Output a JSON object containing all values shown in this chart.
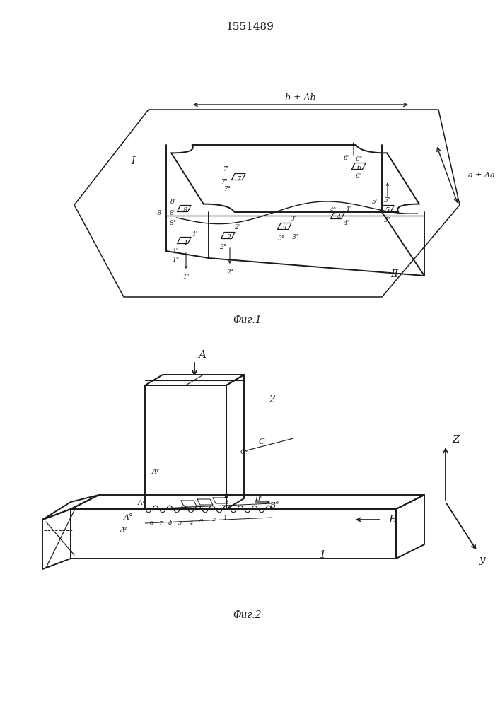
{
  "title": "1551489",
  "fig1_caption": "Фиг.1",
  "fig2_caption": "Фиг.2",
  "bg_color": "#ffffff",
  "line_color": "#1a1a1a"
}
